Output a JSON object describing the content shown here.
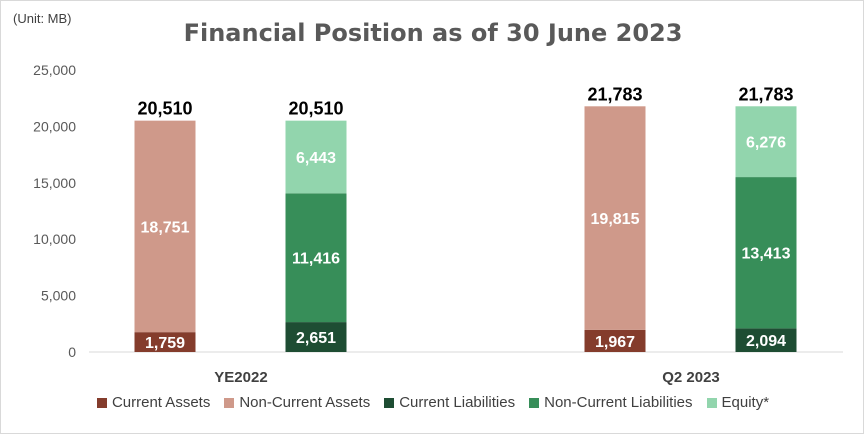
{
  "chart_data": {
    "type": "bar",
    "stacked": true,
    "title": "Financial Position as of 30 June 2023",
    "unit_note": "(Unit: MB)",
    "ylim": [
      0,
      25000
    ],
    "y_ticks": [
      "0",
      "5,000",
      "10,000",
      "15,000",
      "20,000",
      "25,000"
    ],
    "y_tick_values": [
      0,
      5000,
      10000,
      15000,
      20000,
      25000
    ],
    "grid": false,
    "legend_position": "bottom",
    "groups": [
      "YE2022",
      "Q2 2023"
    ],
    "series": [
      {
        "name": "Current Assets",
        "color": "#843c2c",
        "stack": "assets",
        "values": [
          1759,
          1967
        ],
        "labels": [
          "1,759",
          "1,967"
        ]
      },
      {
        "name": "Non-Current Assets",
        "color": "#cf998a",
        "stack": "assets",
        "values": [
          18751,
          19815
        ],
        "labels": [
          "18,751",
          "19,815"
        ]
      },
      {
        "name": "Current Liabilities",
        "color": "#1e4d33",
        "stack": "liabilities",
        "values": [
          2651,
          2094
        ],
        "labels": [
          "2,651",
          "2,094"
        ]
      },
      {
        "name": "Non-Current Liabilities",
        "color": "#378e59",
        "stack": "liabilities",
        "values": [
          11416,
          13413
        ],
        "labels": [
          "11,416",
          "13,413"
        ]
      },
      {
        "name": "Equity*",
        "color": "#92d5ad",
        "stack": "liabilities",
        "values": [
          6443,
          6276
        ],
        "labels": [
          "6,443",
          "6,276"
        ]
      }
    ],
    "totals": {
      "assets": [
        "20,510",
        "21,783"
      ],
      "liabilities": [
        "20,510",
        "21,783"
      ]
    }
  }
}
